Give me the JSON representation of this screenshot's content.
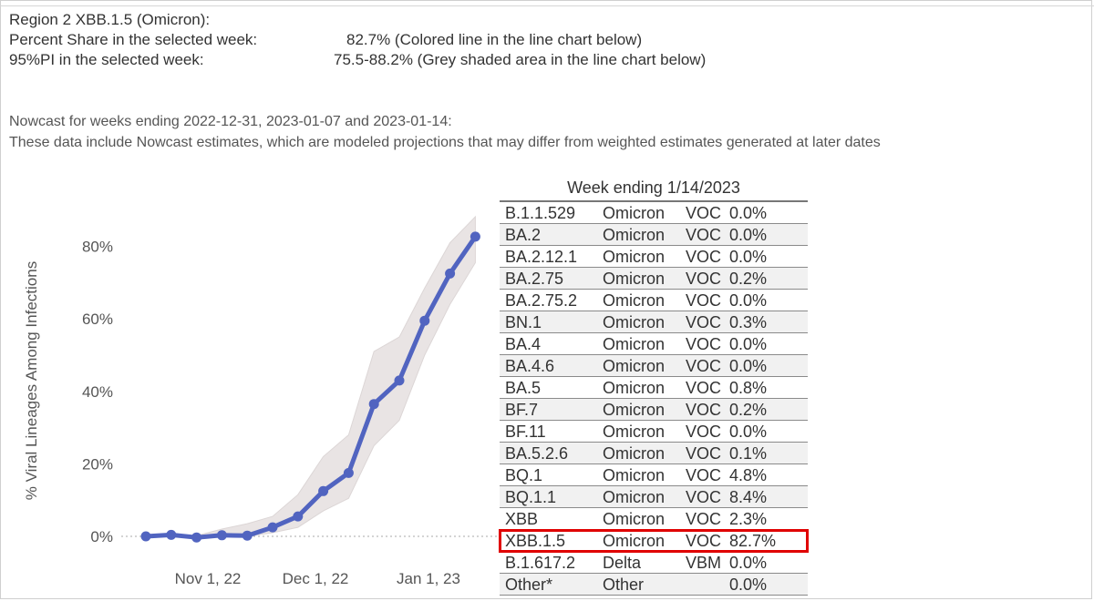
{
  "summary": {
    "line1": "Region 2  XBB.1.5 (Omicron):",
    "share_label": "Percent Share in the selected week:",
    "share_value": "82.7%  (Colored line in the line chart below)",
    "pi_label": "95%PI in the selected week:",
    "pi_value": "75.5-88.2% (Grey shaded area in the line chart below)"
  },
  "nowcast": {
    "line1": "Nowcast for weeks ending 2022-12-31, 2023-01-07 and 2023-01-14:",
    "line2": "These data include Nowcast estimates, which are modeled projections that may differ from weighted estimates generated at later dates"
  },
  "colors": {
    "line": "#5164c0",
    "band": "#e9e4e4",
    "highlight": "#e00000"
  },
  "chart_data": {
    "type": "line",
    "ylabel": "% Viral Lineages Among Infections",
    "yticks": [
      "0%",
      "20%",
      "40%",
      "60%",
      "80%"
    ],
    "ylim": [
      0,
      90
    ],
    "xticks": [
      "Nov 1, 22",
      "Dec 1, 22",
      "Jan 1, 23"
    ],
    "series": [
      {
        "values": [
          0.0,
          0.4,
          -0.3,
          0.3,
          0.2,
          2.5,
          5.5,
          12.5,
          17.5,
          36.5,
          43.0,
          59.5,
          72.5,
          82.7
        ],
        "pi_lower": [
          0.0,
          0.0,
          -0.4,
          0.0,
          0.0,
          1.0,
          2.5,
          7.0,
          10.5,
          25.0,
          32.0,
          50.0,
          64.0,
          75.5
        ],
        "pi_upper": [
          0.0,
          0.6,
          0.2,
          2.0,
          3.5,
          5.5,
          11.5,
          22.0,
          28.0,
          51.0,
          55.0,
          68.5,
          81.0,
          88.2
        ]
      }
    ]
  },
  "table": {
    "title": "Week ending 1/14/2023",
    "rows": [
      {
        "lineage": "B.1.1.529",
        "variant": "Omicron",
        "type": "VOC",
        "pct": "0.0%"
      },
      {
        "lineage": "BA.2",
        "variant": "Omicron",
        "type": "VOC",
        "pct": "0.0%"
      },
      {
        "lineage": "BA.2.12.1",
        "variant": "Omicron",
        "type": "VOC",
        "pct": "0.0%"
      },
      {
        "lineage": "BA.2.75",
        "variant": "Omicron",
        "type": "VOC",
        "pct": "0.2%"
      },
      {
        "lineage": "BA.2.75.2",
        "variant": "Omicron",
        "type": "VOC",
        "pct": "0.0%"
      },
      {
        "lineage": "BN.1",
        "variant": "Omicron",
        "type": "VOC",
        "pct": "0.3%"
      },
      {
        "lineage": "BA.4",
        "variant": "Omicron",
        "type": "VOC",
        "pct": "0.0%"
      },
      {
        "lineage": "BA.4.6",
        "variant": "Omicron",
        "type": "VOC",
        "pct": "0.0%"
      },
      {
        "lineage": "BA.5",
        "variant": "Omicron",
        "type": "VOC",
        "pct": "0.8%"
      },
      {
        "lineage": "BF.7",
        "variant": "Omicron",
        "type": "VOC",
        "pct": "0.2%"
      },
      {
        "lineage": "BF.11",
        "variant": "Omicron",
        "type": "VOC",
        "pct": "0.0%"
      },
      {
        "lineage": "BA.5.2.6",
        "variant": "Omicron",
        "type": "VOC",
        "pct": "0.1%"
      },
      {
        "lineage": "BQ.1",
        "variant": "Omicron",
        "type": "VOC",
        "pct": "4.8%"
      },
      {
        "lineage": "BQ.1.1",
        "variant": "Omicron",
        "type": "VOC",
        "pct": "8.4%"
      },
      {
        "lineage": "XBB",
        "variant": "Omicron",
        "type": "VOC",
        "pct": "2.3%"
      },
      {
        "lineage": "XBB.1.5",
        "variant": "Omicron",
        "type": "VOC",
        "pct": "82.7%",
        "highlight": true
      },
      {
        "lineage": "B.1.617.2",
        "variant": "Delta",
        "type": "VBM",
        "pct": "0.0%"
      },
      {
        "lineage": "Other*",
        "variant": "Other",
        "type": "",
        "pct": "0.0%"
      }
    ]
  }
}
